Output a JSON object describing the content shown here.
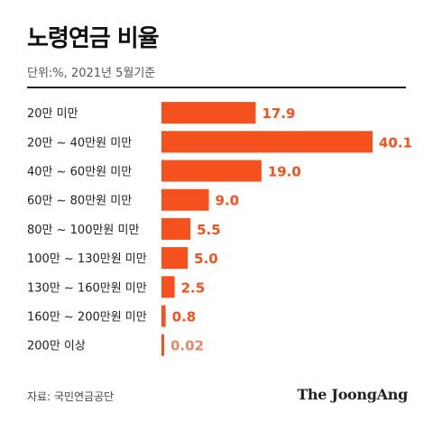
{
  "chart_data": {
    "type": "bar",
    "orientation": "horizontal",
    "title": "노령연금 비율",
    "subtitle": "단위:%, 2021년 5월기준",
    "categories": [
      "20만 미만",
      "20만 ~ 40만원 미만",
      "40만 ~ 60만원 미만",
      "60만 ~ 80만원 미만",
      "80만 ~ 100만원 미만",
      "100만 ~ 130만원 미만",
      "130만 ~ 160만원 미만",
      "160만 ~ 200만원 미만",
      "200만 이상"
    ],
    "values": [
      17.9,
      40.1,
      19.0,
      9.0,
      5.5,
      5.0,
      2.5,
      0.8,
      0.02
    ],
    "value_labels": [
      "17.9",
      "40.1",
      "19.0",
      "9.0",
      "5.5",
      "5.0",
      "2.5",
      "0.8",
      "0.02"
    ],
    "xlim": [
      0,
      40.1
    ],
    "colors": {
      "bar": "#f4511e",
      "value_text": "#f4511e",
      "last_value_text": "#e8876a",
      "rule": "#222222"
    },
    "grid": false,
    "legend": "none"
  },
  "footer": {
    "source": "자료: 국민연금공단",
    "logo": "The JoongAng"
  }
}
